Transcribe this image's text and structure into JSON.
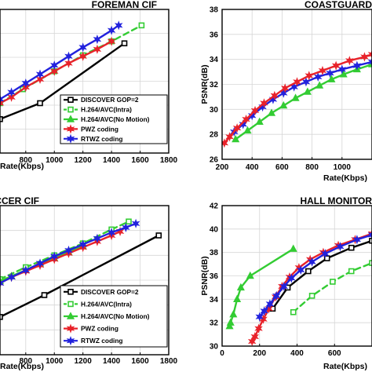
{
  "chart_data": [
    {
      "type": "line",
      "title": "FOREMAN CIF",
      "xlabel": "Rate(Kbps)",
      "ylabel": "",
      "xlim": [
        620,
        1800
      ],
      "ylim": [
        29.5,
        36.7
      ],
      "xticks": [
        "800",
        "1000",
        "1200",
        "1400",
        "1600",
        "1800"
      ],
      "yticks": [],
      "grid": true,
      "legend": "bottom-right",
      "series": [
        {
          "name": "DISCOVER GOP=2",
          "color": "#000000",
          "dash": "",
          "marker": "square-open",
          "x": [
            620,
            900,
            1490
          ],
          "y": [
            31.2,
            32.0,
            35.0
          ]
        },
        {
          "name": "H.264/AVC(Intra)",
          "color": "#33cc33",
          "dash": "dashed",
          "marker": "square-open",
          "x": [
            620,
            780,
            1000,
            1200,
            1400,
            1610
          ],
          "y": [
            32.0,
            32.7,
            33.6,
            34.4,
            35.1,
            35.9
          ]
        },
        {
          "name": "H.264/AVC(No Motion)",
          "color": "#33cc33",
          "dash": "",
          "marker": "triangle",
          "x": [],
          "y": []
        },
        {
          "name": "PWZ coding",
          "color": "#e8222a",
          "dash": "",
          "marker": "star",
          "x": [
            620,
            700,
            800,
            900,
            1000,
            1100,
            1200,
            1300,
            1400
          ],
          "y": [
            32.0,
            32.3,
            32.8,
            33.2,
            33.6,
            34.0,
            34.35,
            34.7,
            35.1
          ]
        },
        {
          "name": "RTWZ coding",
          "color": "#2222dd",
          "dash": "",
          "marker": "star",
          "x": [
            620,
            700,
            800,
            900,
            1000,
            1100,
            1200,
            1300,
            1400,
            1450
          ],
          "y": [
            32.2,
            32.55,
            33.0,
            33.45,
            33.9,
            34.35,
            34.8,
            35.2,
            35.65,
            35.9
          ]
        }
      ]
    },
    {
      "type": "line",
      "title": "COASTGUARD",
      "xlabel": "Rate(Kbps)",
      "ylabel": "PSNR(dB)",
      "xlim": [
        200,
        1200
      ],
      "ylim": [
        26,
        38
      ],
      "xticks": [
        "200",
        "400",
        "600",
        "800",
        "1000"
      ],
      "yticks": [
        "26",
        "28",
        "30",
        "32",
        "34",
        "36",
        "38"
      ],
      "grid": true,
      "legend": "",
      "series": [
        {
          "name": "H.264/AVC(No Motion)",
          "color": "#33cc33",
          "dash": "",
          "marker": "triangle",
          "x": [
            290,
            370,
            450,
            530,
            610,
            690,
            770,
            850,
            930,
            1010,
            1100,
            1200
          ],
          "y": [
            27.6,
            28.3,
            29.0,
            29.7,
            30.3,
            30.9,
            31.4,
            31.9,
            32.4,
            32.8,
            33.2,
            33.6
          ]
        },
        {
          "name": "RTWZ coding",
          "color": "#2222dd",
          "dash": "",
          "marker": "star",
          "x": [
            280,
            340,
            400,
            470,
            540,
            610,
            680,
            760,
            840,
            920,
            1000,
            1100,
            1200
          ],
          "y": [
            28.2,
            28.8,
            29.5,
            30.2,
            30.8,
            31.3,
            31.8,
            32.2,
            32.6,
            32.9,
            33.2,
            33.5,
            33.8
          ]
        },
        {
          "name": "PWZ coding",
          "color": "#e8222a",
          "dash": "",
          "marker": "star",
          "x": [
            215,
            250,
            300,
            360,
            420,
            480,
            550,
            620,
            700,
            780,
            870,
            960,
            1050,
            1150,
            1200
          ],
          "y": [
            27.3,
            27.8,
            28.5,
            29.2,
            29.9,
            30.5,
            31.1,
            31.7,
            32.2,
            32.7,
            33.1,
            33.5,
            33.9,
            34.2,
            34.4
          ]
        }
      ]
    },
    {
      "type": "line",
      "title": "SOCCER CIF",
      "xlabel": "Rate(Kbps)",
      "ylabel": "",
      "xlim": [
        620,
        1800
      ],
      "ylim": [
        30.5,
        38.0
      ],
      "xticks": [
        "800",
        "1000",
        "1200",
        "1400",
        "1600",
        "1800"
      ],
      "yticks": [],
      "grid": true,
      "legend": "bottom-right",
      "series": [
        {
          "name": "DISCOVER GOP=2",
          "color": "#000000",
          "dash": "",
          "marker": "square-open",
          "x": [
            620,
            930,
            1730
          ],
          "y": [
            32.4,
            33.5,
            36.5
          ]
        },
        {
          "name": "H.264/AVC(Intra)",
          "color": "#33cc33",
          "dash": "dashed",
          "marker": "square-open",
          "x": [
            620,
            800,
            1000,
            1200,
            1400,
            1520
          ],
          "y": [
            34.3,
            34.9,
            35.5,
            36.1,
            36.8,
            37.2
          ]
        },
        {
          "name": "H.264/AVC(No Motion)",
          "color": "#33cc33",
          "dash": "",
          "marker": "triangle",
          "x": [
            620,
            700,
            800,
            900,
            1000,
            1100,
            1200
          ],
          "y": [
            34.2,
            34.45,
            34.75,
            35.05,
            35.35,
            35.65,
            35.95
          ]
        },
        {
          "name": "PWZ coding",
          "color": "#e8222a",
          "dash": "",
          "marker": "star",
          "x": [
            620,
            700,
            800,
            900,
            1000,
            1100,
            1200,
            1300,
            1400,
            1460
          ],
          "y": [
            34.1,
            34.4,
            34.7,
            35.0,
            35.3,
            35.6,
            35.9,
            36.2,
            36.5,
            36.7
          ]
        },
        {
          "name": "RTWZ coding",
          "color": "#2222dd",
          "dash": "",
          "marker": "star",
          "x": [
            620,
            700,
            800,
            900,
            1000,
            1100,
            1200,
            1300,
            1400,
            1500,
            1570
          ],
          "y": [
            34.1,
            34.4,
            34.75,
            35.1,
            35.45,
            35.75,
            36.05,
            36.35,
            36.65,
            36.9,
            37.1
          ]
        }
      ]
    },
    {
      "type": "line",
      "title": "HALL MONITOR",
      "xlabel": "Rate(Kbps)",
      "ylabel": "PSNR(dB)",
      "xlim": [
        0,
        800
      ],
      "ylim": [
        30,
        42
      ],
      "xticks": [
        "0",
        "200",
        "400",
        "600"
      ],
      "yticks": [
        "30",
        "32",
        "34",
        "36",
        "38",
        "40",
        "42"
      ],
      "grid": true,
      "legend": "bottom-right",
      "series": [
        {
          "name": "DISCOVER GOP=2",
          "color": "#000000",
          "dash": "",
          "marker": "square-open",
          "x": [
            270,
            350,
            460,
            560,
            690,
            800
          ],
          "y": [
            33.2,
            35.0,
            36.4,
            37.5,
            38.4,
            39.0
          ]
        },
        {
          "name": "H.264/AVC(Intra)",
          "color": "#33cc33",
          "dash": "dashed",
          "marker": "square-open",
          "x": [
            380,
            480,
            590,
            690,
            800
          ],
          "y": [
            32.9,
            34.3,
            35.5,
            36.4,
            37.1
          ]
        },
        {
          "name": "H.264/AVC(No Motion)",
          "color": "#33cc33",
          "dash": "",
          "marker": "triangle",
          "x": [
            40,
            45,
            60,
            80,
            100,
            150,
            380
          ],
          "y": [
            31.7,
            32.0,
            32.7,
            34.0,
            35.0,
            36.0,
            38.3
          ]
        },
        {
          "name": "PWZ coding",
          "color": "#e8222a",
          "dash": "",
          "marker": "star",
          "x": [
            160,
            175,
            195,
            220,
            250,
            285,
            320,
            360,
            410,
            470,
            540,
            620,
            710,
            800
          ],
          "y": [
            30.4,
            30.8,
            31.5,
            32.3,
            33.2,
            34.2,
            35.1,
            35.9,
            36.7,
            37.4,
            38.0,
            38.6,
            39.1,
            39.6
          ]
        },
        {
          "name": "RTWZ coding",
          "color": "#2222dd",
          "dash": "",
          "marker": "star",
          "x": [
            200,
            225,
            255,
            290,
            330,
            370,
            420,
            480,
            550,
            630,
            720,
            800
          ],
          "y": [
            32.5,
            33.0,
            33.6,
            34.3,
            35.1,
            35.8,
            36.5,
            37.2,
            37.9,
            38.5,
            39.1,
            39.5
          ]
        }
      ]
    }
  ]
}
